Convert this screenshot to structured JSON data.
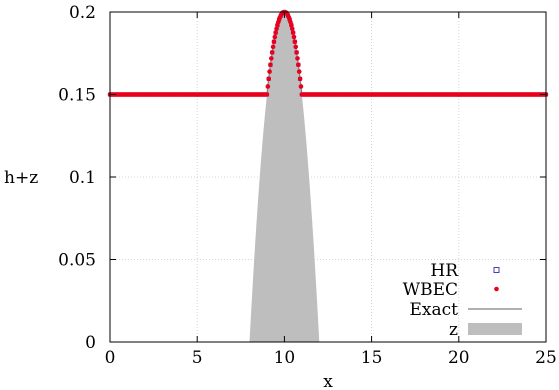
{
  "chart_data": {
    "type": "line",
    "title": "",
    "xlabel": "x",
    "ylabel": "h+z",
    "xlim": [
      0,
      25
    ],
    "ylim": [
      0,
      0.2
    ],
    "x_ticks": [
      "0",
      "5",
      "10",
      "15",
      "20",
      "25"
    ],
    "y_ticks": [
      "0",
      "0.05",
      "0.1",
      "0.15",
      "0.2"
    ],
    "grid": true,
    "legend_position": "bottom-right",
    "bump": {
      "center": 10,
      "half_width": 2,
      "peak_height": 0.2,
      "formula": "0.2 - 0.05*(x-10)^2 for 8 < x < 12"
    },
    "series": [
      {
        "name": "HR",
        "marker": "open-square",
        "color": "#4040c0"
      },
      {
        "name": "WBEC",
        "marker": "filled-circle",
        "color": "#e8001c"
      },
      {
        "name": "Exact",
        "marker": "line",
        "color": "#808080"
      },
      {
        "name": "z",
        "marker": "filled-area",
        "color": "#bebebe"
      }
    ],
    "still_water_level": 0.15
  }
}
